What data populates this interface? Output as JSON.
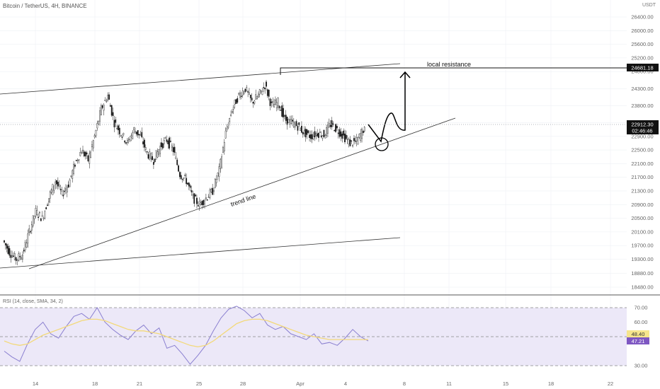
{
  "header": {
    "symbol_line": "Bitcoin / TetherUS, 4H, BINANCE",
    "currency": "USDT"
  },
  "colors": {
    "background": "#ffffff",
    "grid": "#eef0f4",
    "candle": "#1a1a1a",
    "drawing": "#000000",
    "rsi_band": "#ece8f8",
    "rsi_line": "#8a7fd0",
    "rsi_ma": "#f3d97a",
    "badge_dark": "#111111",
    "badge_rsi_ma": "#f6e58d",
    "badge_rsi": "#7e57c2"
  },
  "chart_data": [
    {
      "type": "candlestick",
      "title": "Bitcoin / TetherUS, 4H, BINANCE",
      "unit": "USDT",
      "y_axis": {
        "ticks": [
          26400,
          26000,
          25600,
          25200,
          24800,
          24300,
          23800,
          23300,
          22900,
          22500,
          22100,
          21700,
          21300,
          20900,
          20500,
          20100,
          19700,
          19300,
          18880,
          18480
        ]
      },
      "x_axis": {
        "ticks": [
          "14",
          "18",
          "21",
          "25",
          "28",
          "Apr",
          "4",
          "8",
          "11",
          "15",
          "18",
          "22"
        ]
      },
      "approx_close_path": [
        19850,
        19500,
        19300,
        19450,
        20100,
        20700,
        20500,
        21100,
        21600,
        21200,
        21500,
        22100,
        22500,
        22200,
        22900,
        23700,
        24100,
        23300,
        23000,
        22700,
        23100,
        22900,
        22400,
        22200,
        22600,
        22800,
        22500,
        21800,
        21600,
        21100,
        20900,
        21100,
        21300,
        21900,
        23000,
        23700,
        24100,
        24300,
        23900,
        24100,
        24400,
        23800,
        23900,
        23400,
        23300,
        23200,
        23000,
        22900,
        23000,
        22950,
        23250,
        23100,
        22900,
        22700,
        22750,
        23100,
        22912
      ],
      "price_labels": {
        "resistance": "24681.18",
        "last_price": "22912.30",
        "countdown": "02:46:46"
      },
      "annotations": {
        "resistance_label": "local resistance",
        "trend_label": "trend line"
      },
      "grid": true
    },
    {
      "type": "line",
      "title": "RSI (14, close, SMA, 34, 2)",
      "ylim": [
        30,
        70
      ],
      "y_ticks": [
        "70.00",
        "60.00",
        "49.00",
        "30.00"
      ],
      "levels": [
        70,
        50,
        30
      ],
      "series": [
        {
          "name": "RSI",
          "values": [
            40,
            36,
            33,
            45,
            55,
            60,
            52,
            49,
            57,
            64,
            66,
            62,
            70,
            60,
            55,
            51,
            48,
            54,
            58,
            52,
            56,
            42,
            44,
            38,
            31,
            37,
            44,
            54,
            63,
            69,
            71,
            68,
            63,
            66,
            58,
            55,
            57,
            52,
            50,
            48,
            52,
            45,
            46,
            44,
            49,
            55,
            50,
            47
          ]
        },
        {
          "name": "RSI SMA",
          "values": [
            47,
            45,
            44,
            45,
            48,
            51,
            53,
            55,
            57,
            59,
            61,
            62,
            62,
            61,
            59,
            57,
            55,
            54,
            54,
            53,
            52,
            50,
            48,
            46,
            44,
            43,
            44,
            47,
            51,
            55,
            59,
            61,
            62,
            62,
            61,
            59,
            57,
            55,
            53,
            51,
            50,
            49,
            48,
            48,
            48,
            48,
            48,
            48
          ]
        }
      ],
      "current_values": {
        "ma": "48.40",
        "rsi": "47.21"
      }
    }
  ]
}
